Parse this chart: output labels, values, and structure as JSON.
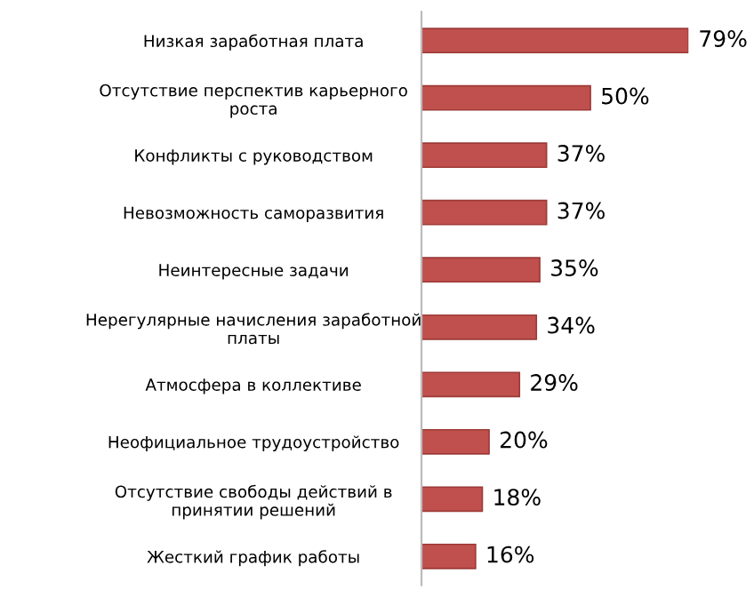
{
  "chart_data": {
    "type": "bar",
    "orientation": "horizontal",
    "categories": [
      "Низкая заработная плата",
      "Отсутствие перспектив карьерного\nроста",
      "Конфликты с руководством",
      "Невозможность саморазвития",
      "Неинтересные задачи",
      "Нерегулярные начисления заработной\nплаты",
      "Атмосфера в коллективе",
      "Неофициальное трудоустройство",
      "Отсутствие свободы действий в\nпринятии решений",
      "Жесткий график работы"
    ],
    "values": [
      79,
      50,
      37,
      37,
      35,
      34,
      29,
      20,
      18,
      16
    ],
    "value_labels": [
      "79%",
      "50%",
      "37%",
      "37%",
      "35%",
      "34%",
      "29%",
      "20%",
      "18%",
      "16%"
    ],
    "color": "#c0504d"
  }
}
